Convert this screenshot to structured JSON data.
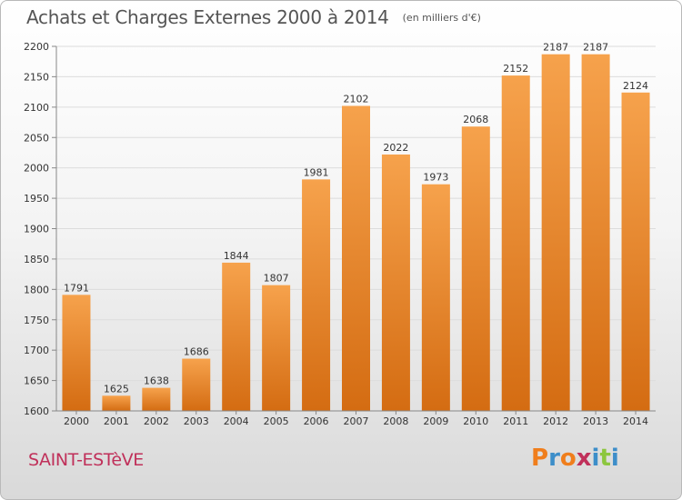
{
  "header": {
    "title": "Achats et Charges Externes 2000 à 2014",
    "unit": "(en milliers d'€)"
  },
  "footer": {
    "commune": "SAINT-ESTèVE",
    "logo_text": "Proxiti",
    "logo_colors": [
      "#f07e1c",
      "#3d8ec9",
      "#f07e1c",
      "#c0305a",
      "#3d8ec9",
      "#8cc63f",
      "#3d8ec9"
    ]
  },
  "colors": {
    "bar_light": "#f6a24c",
    "bar_dark": "#d46c12",
    "grid": "#dcdcdc",
    "axis": "#888888"
  },
  "chart_data": {
    "type": "bar",
    "title": "Achats et Charges Externes 2000 à 2014",
    "categories": [
      "2000",
      "2001",
      "2002",
      "2003",
      "2004",
      "2005",
      "2006",
      "2007",
      "2008",
      "2009",
      "2010",
      "2011",
      "2012",
      "2013",
      "2014"
    ],
    "values": [
      1791,
      1625,
      1638,
      1686,
      1844,
      1807,
      1981,
      2102,
      2022,
      1973,
      2068,
      2152,
      2187,
      2187,
      2124
    ],
    "ylim": [
      1600,
      2200
    ],
    "yticks": [
      1600,
      1650,
      1700,
      1750,
      1800,
      1850,
      1900,
      1950,
      2000,
      2050,
      2100,
      2150,
      2200
    ],
    "grid": true,
    "xlabel": "",
    "ylabel": ""
  }
}
